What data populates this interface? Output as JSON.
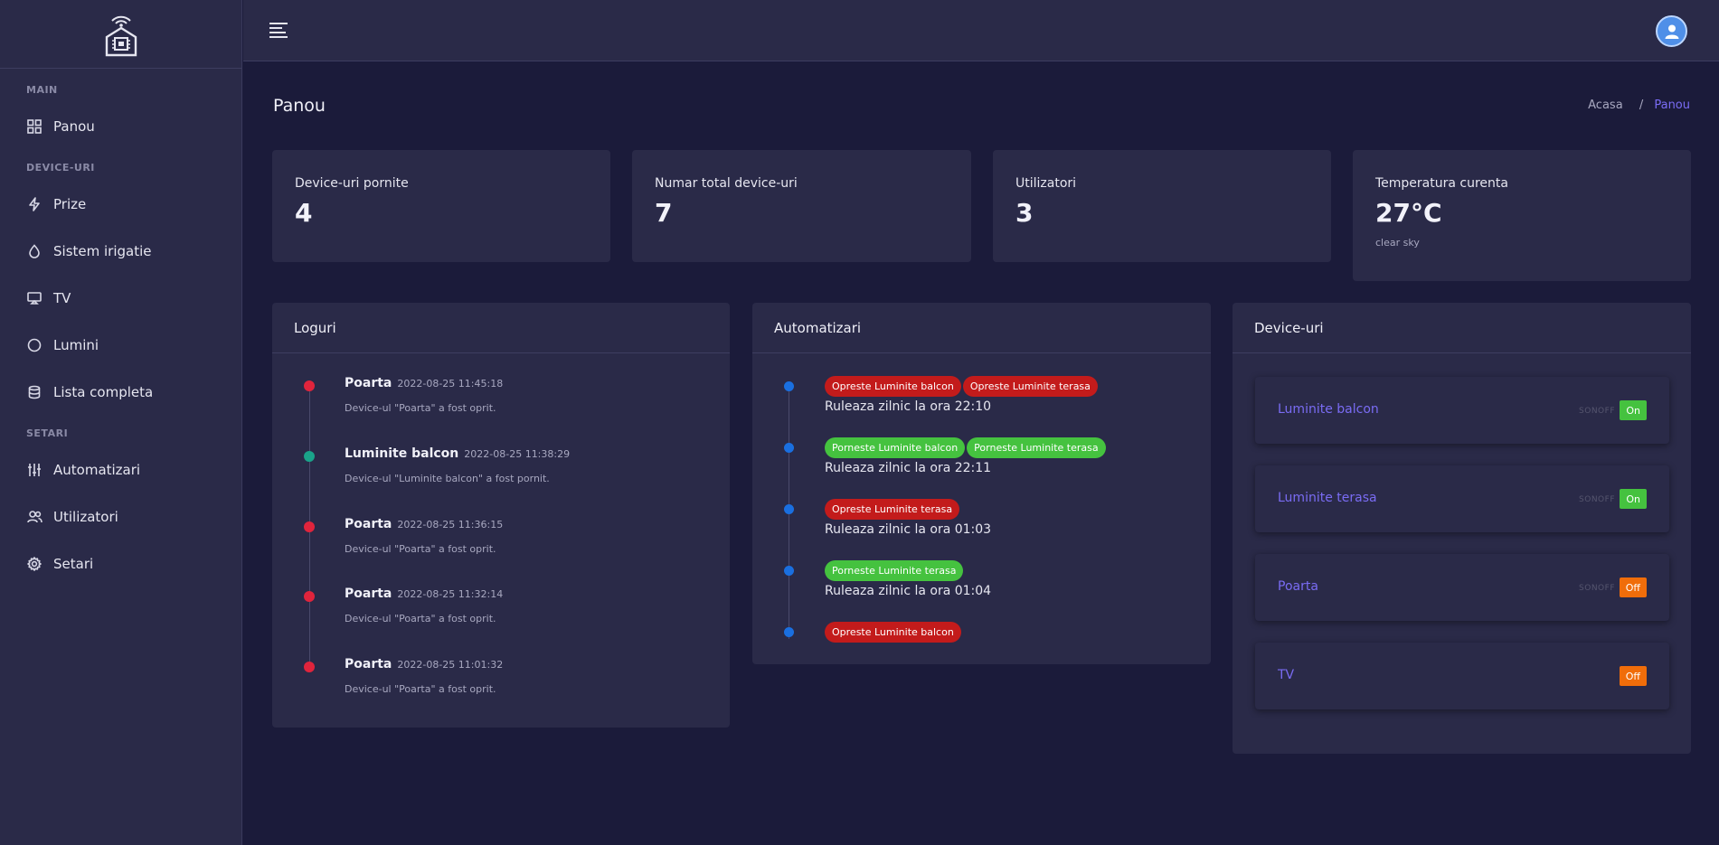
{
  "sidebar": {
    "sections": [
      {
        "title": "MAIN",
        "items": [
          {
            "label": "Panou",
            "icon": "grid-icon"
          }
        ]
      },
      {
        "title": "DEVICE-URI",
        "items": [
          {
            "label": "Prize",
            "icon": "bolt-icon"
          },
          {
            "label": "Sistem irigatie",
            "icon": "droplet-icon"
          },
          {
            "label": "TV",
            "icon": "tv-icon"
          },
          {
            "label": "Lumini",
            "icon": "circle-icon"
          },
          {
            "label": "Lista completa",
            "icon": "database-icon"
          }
        ]
      },
      {
        "title": "SETARI",
        "items": [
          {
            "label": "Automatizari",
            "icon": "sliders-icon"
          },
          {
            "label": "Utilizatori",
            "icon": "users-icon"
          },
          {
            "label": "Setari",
            "icon": "gear-icon"
          }
        ]
      }
    ]
  },
  "header": {
    "title": "Panou",
    "breadcrumb": {
      "home": "Acasa",
      "separator": "/",
      "current": "Panou"
    }
  },
  "stats": [
    {
      "label": "Device-uri pornite",
      "value": "4"
    },
    {
      "label": "Numar total device-uri",
      "value": "7"
    },
    {
      "label": "Utilizatori",
      "value": "3"
    },
    {
      "label": "Temperatura curenta",
      "value": "27°C",
      "sub": "clear sky"
    }
  ],
  "logs": {
    "title": "Loguri",
    "items": [
      {
        "name": "Poarta",
        "time": "2022-08-25 11:45:18",
        "desc": "Device-ul \"Poarta\" a fost oprit.",
        "color": "#e0243c"
      },
      {
        "name": "Luminite balcon",
        "time": "2022-08-25 11:38:29",
        "desc": "Device-ul \"Luminite balcon\" a fost pornit.",
        "color": "#1aa38a"
      },
      {
        "name": "Poarta",
        "time": "2022-08-25 11:36:15",
        "desc": "Device-ul \"Poarta\" a fost oprit.",
        "color": "#e0243c"
      },
      {
        "name": "Poarta",
        "time": "2022-08-25 11:32:14",
        "desc": "Device-ul \"Poarta\" a fost oprit.",
        "color": "#e0243c"
      },
      {
        "name": "Poarta",
        "time": "2022-08-25 11:01:32",
        "desc": "Device-ul \"Poarta\" a fost oprit.",
        "color": "#e0243c"
      }
    ]
  },
  "automations": {
    "title": "Automatizari",
    "items": [
      {
        "badges": [
          {
            "text": "Opreste Luminite balcon",
            "type": "red"
          },
          {
            "text": "Opreste Luminite terasa",
            "type": "red"
          }
        ],
        "schedule": "Ruleaza zilnic la ora 22:10"
      },
      {
        "badges": [
          {
            "text": "Porneste Luminite balcon",
            "type": "green"
          },
          {
            "text": "Porneste Luminite terasa",
            "type": "green"
          }
        ],
        "schedule": "Ruleaza zilnic la ora 22:11"
      },
      {
        "badges": [
          {
            "text": "Opreste Luminite terasa",
            "type": "red"
          }
        ],
        "schedule": "Ruleaza zilnic la ora 01:03"
      },
      {
        "badges": [
          {
            "text": "Porneste Luminite terasa",
            "type": "green"
          }
        ],
        "schedule": "Ruleaza zilnic la ora 01:04"
      },
      {
        "badges": [
          {
            "text": "Opreste Luminite balcon",
            "type": "red"
          }
        ],
        "schedule": ""
      }
    ]
  },
  "devices": {
    "title": "Device-uri",
    "items": [
      {
        "name": "Luminite balcon",
        "brand": "SONOFF",
        "state": "On"
      },
      {
        "name": "Luminite terasa",
        "brand": "SONOFF",
        "state": "On"
      },
      {
        "name": "Poarta",
        "brand": "SONOFF",
        "state": "Off"
      },
      {
        "name": "TV",
        "brand": "",
        "state": "Off"
      }
    ]
  },
  "colors": {
    "accent": "#7a6cf4",
    "on": "#45c23f",
    "off": "#f06d0a",
    "badge_red": "#c31b1b",
    "timeline_blue": "#1a6fe0"
  }
}
